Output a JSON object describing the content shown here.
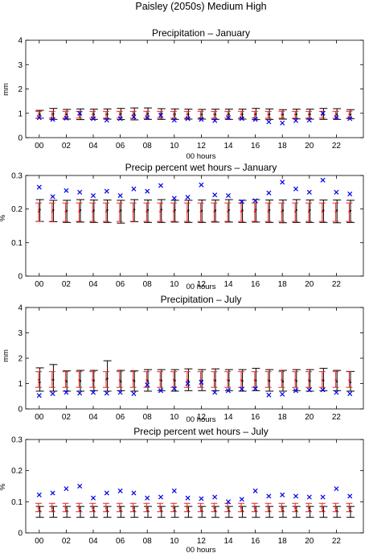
{
  "figure": {
    "title": "Paisley (2050s) Medium High"
  },
  "colors": {
    "observed": "#0000ee",
    "red_bar": "#ee2222",
    "black_bar": "#000000",
    "axis": "#000000"
  },
  "chart_data": [
    {
      "type": "errorbar",
      "title": "Precipitation – January",
      "xlabel": "00 hours",
      "ylabel": "mm",
      "xlim": [
        -1,
        24
      ],
      "ylim": [
        0,
        4
      ],
      "xticks": [
        0,
        2,
        4,
        6,
        8,
        10,
        12,
        14,
        16,
        18,
        20,
        22
      ],
      "xticklabels": [
        "00",
        "02",
        "04",
        "06",
        "08",
        "10",
        "12",
        "14",
        "16",
        "18",
        "20",
        "22"
      ],
      "yticks": [
        0,
        1,
        2,
        3,
        4
      ],
      "yticklabels": [
        "0",
        "1",
        "2",
        "3",
        "4"
      ],
      "x": [
        0,
        1,
        2,
        3,
        4,
        5,
        6,
        7,
        8,
        9,
        10,
        11,
        12,
        13,
        14,
        15,
        16,
        17,
        18,
        19,
        20,
        21,
        22,
        23
      ],
      "red_bars": {
        "mid": [
          0.95,
          0.95,
          0.95,
          0.95,
          0.95,
          0.95,
          0.95,
          0.95,
          0.95,
          0.95,
          0.95,
          0.95,
          0.95,
          0.95,
          0.95,
          0.95,
          0.95,
          0.95,
          0.95,
          0.95,
          0.95,
          0.95,
          0.95,
          0.95
        ],
        "low": [
          0.8,
          0.8,
          0.8,
          0.8,
          0.8,
          0.8,
          0.8,
          0.8,
          0.8,
          0.8,
          0.8,
          0.8,
          0.8,
          0.8,
          0.8,
          0.8,
          0.8,
          0.8,
          0.8,
          0.8,
          0.8,
          0.8,
          0.8,
          0.8
        ],
        "high": [
          1.08,
          1.08,
          1.08,
          1.08,
          1.08,
          1.08,
          1.08,
          1.08,
          1.08,
          1.08,
          1.08,
          1.08,
          1.08,
          1.08,
          1.08,
          1.08,
          1.08,
          1.08,
          1.08,
          1.08,
          1.08,
          1.08,
          1.08,
          1.08
        ]
      },
      "black_bars": {
        "mid": [
          0.95,
          0.97,
          0.96,
          0.97,
          0.96,
          0.96,
          0.97,
          0.98,
          0.98,
          0.97,
          0.96,
          0.96,
          0.95,
          0.96,
          0.96,
          0.96,
          0.97,
          0.96,
          0.95,
          0.96,
          0.96,
          0.97,
          0.96,
          0.95
        ],
        "low": [
          0.8,
          0.75,
          0.76,
          0.74,
          0.75,
          0.76,
          0.74,
          0.73,
          0.75,
          0.75,
          0.75,
          0.76,
          0.76,
          0.75,
          0.75,
          0.76,
          0.74,
          0.75,
          0.76,
          0.77,
          0.76,
          0.75,
          0.75,
          0.78
        ],
        "high": [
          1.12,
          1.2,
          1.16,
          1.18,
          1.17,
          1.18,
          1.2,
          1.22,
          1.22,
          1.19,
          1.18,
          1.17,
          1.16,
          1.17,
          1.17,
          1.17,
          1.2,
          1.18,
          1.15,
          1.17,
          1.17,
          1.2,
          1.19,
          1.15
        ]
      },
      "observed": [
        0.82,
        0.75,
        0.8,
        1.0,
        0.78,
        0.72,
        0.78,
        0.85,
        0.82,
        0.92,
        0.72,
        0.78,
        0.75,
        0.7,
        0.82,
        0.78,
        0.75,
        0.65,
        0.6,
        0.7,
        0.72,
        1.0,
        0.82,
        0.78
      ]
    },
    {
      "type": "errorbar",
      "title": "Precip percent wet hours – January",
      "xlabel": "00 hours",
      "ylabel": "%",
      "xlim": [
        -1,
        24
      ],
      "ylim": [
        0,
        0.3
      ],
      "xticks": [
        0,
        2,
        4,
        6,
        8,
        10,
        12,
        14,
        16,
        18,
        20,
        22
      ],
      "xticklabels": [
        "00",
        "02",
        "04",
        "06",
        "08",
        "10",
        "12",
        "14",
        "16",
        "18",
        "20",
        "22"
      ],
      "yticks": [
        0,
        0.1,
        0.2,
        0.3
      ],
      "yticklabels": [
        "0",
        "0.1",
        "0.2",
        "0.3"
      ],
      "x": [
        0,
        1,
        2,
        3,
        4,
        5,
        6,
        7,
        8,
        9,
        10,
        11,
        12,
        13,
        14,
        15,
        16,
        17,
        18,
        19,
        20,
        21,
        22,
        23
      ],
      "red_bars": {
        "mid": [
          0.192,
          0.192,
          0.192,
          0.192,
          0.192,
          0.192,
          0.192,
          0.192,
          0.192,
          0.192,
          0.192,
          0.192,
          0.192,
          0.192,
          0.192,
          0.192,
          0.192,
          0.192,
          0.192,
          0.192,
          0.192,
          0.192,
          0.192,
          0.192
        ],
        "low": [
          0.163,
          0.163,
          0.163,
          0.163,
          0.163,
          0.163,
          0.163,
          0.163,
          0.163,
          0.163,
          0.163,
          0.163,
          0.163,
          0.163,
          0.163,
          0.163,
          0.163,
          0.163,
          0.163,
          0.163,
          0.163,
          0.163,
          0.163,
          0.163
        ],
        "high": [
          0.218,
          0.218,
          0.218,
          0.218,
          0.218,
          0.218,
          0.218,
          0.218,
          0.218,
          0.218,
          0.218,
          0.218,
          0.218,
          0.218,
          0.218,
          0.218,
          0.218,
          0.218,
          0.218,
          0.218,
          0.218,
          0.218,
          0.218,
          0.218
        ]
      },
      "black_bars": {
        "mid": [
          0.198,
          0.197,
          0.195,
          0.197,
          0.196,
          0.197,
          0.196,
          0.198,
          0.197,
          0.198,
          0.197,
          0.196,
          0.195,
          0.196,
          0.197,
          0.196,
          0.198,
          0.197,
          0.196,
          0.197,
          0.197,
          0.196,
          0.196,
          0.195
        ],
        "low": [
          0.163,
          0.162,
          0.16,
          0.161,
          0.16,
          0.16,
          0.158,
          0.162,
          0.16,
          0.16,
          0.161,
          0.16,
          0.16,
          0.161,
          0.161,
          0.16,
          0.161,
          0.16,
          0.159,
          0.16,
          0.16,
          0.16,
          0.159,
          0.16
        ],
        "high": [
          0.228,
          0.226,
          0.226,
          0.228,
          0.227,
          0.227,
          0.226,
          0.228,
          0.227,
          0.228,
          0.226,
          0.226,
          0.227,
          0.227,
          0.228,
          0.226,
          0.228,
          0.227,
          0.227,
          0.228,
          0.227,
          0.227,
          0.227,
          0.226
        ]
      },
      "observed": [
        0.265,
        0.237,
        0.255,
        0.25,
        0.24,
        0.253,
        0.24,
        0.26,
        0.253,
        0.27,
        0.232,
        0.235,
        0.272,
        0.242,
        0.24,
        0.222,
        0.225,
        0.248,
        0.28,
        0.26,
        0.25,
        0.286,
        0.25,
        0.245
      ]
    },
    {
      "type": "errorbar",
      "title": "Precipitation – July",
      "xlabel": "00 hours",
      "ylabel": "mm",
      "xlim": [
        -1,
        24
      ],
      "ylim": [
        0,
        4
      ],
      "xticks": [
        0,
        2,
        4,
        6,
        8,
        10,
        12,
        14,
        16,
        18,
        20,
        22
      ],
      "xticklabels": [
        "00",
        "02",
        "04",
        "06",
        "08",
        "10",
        "12",
        "14",
        "16",
        "18",
        "20",
        "22"
      ],
      "yticks": [
        0,
        1,
        2,
        3,
        4
      ],
      "yticklabels": [
        "0",
        "1",
        "2",
        "3",
        "4"
      ],
      "x": [
        0,
        1,
        2,
        3,
        4,
        5,
        6,
        7,
        8,
        9,
        10,
        11,
        12,
        13,
        14,
        15,
        16,
        17,
        18,
        19,
        20,
        21,
        22,
        23
      ],
      "red_bars": {
        "mid": [
          1.15,
          1.15,
          1.12,
          1.14,
          1.13,
          1.15,
          1.14,
          1.14,
          1.14,
          1.14,
          1.15,
          1.14,
          1.14,
          1.14,
          1.14,
          1.14,
          1.14,
          1.14,
          1.14,
          1.14,
          1.14,
          1.14,
          1.14,
          1.13
        ],
        "low": [
          0.85,
          0.85,
          0.85,
          0.85,
          0.85,
          0.85,
          0.85,
          0.85,
          0.85,
          0.85,
          0.85,
          0.85,
          0.85,
          0.85,
          0.85,
          0.85,
          0.85,
          0.85,
          0.85,
          0.85,
          0.85,
          0.85,
          0.85,
          0.85
        ],
        "high": [
          1.47,
          1.47,
          1.47,
          1.47,
          1.47,
          1.47,
          1.47,
          1.47,
          1.47,
          1.47,
          1.47,
          1.47,
          1.47,
          1.47,
          1.47,
          1.47,
          1.47,
          1.47,
          1.47,
          1.47,
          1.47,
          1.47,
          1.47,
          1.47
        ]
      },
      "black_bars": {
        "mid": [
          1.05,
          1.15,
          1.08,
          1.1,
          1.12,
          1.2,
          1.08,
          1.1,
          1.1,
          1.12,
          1.12,
          1.1,
          1.1,
          1.12,
          1.12,
          1.1,
          1.12,
          1.1,
          1.08,
          1.1,
          1.1,
          1.12,
          1.08,
          1.05
        ],
        "low": [
          0.7,
          0.7,
          0.7,
          0.7,
          0.72,
          0.7,
          0.72,
          0.7,
          0.7,
          0.72,
          0.7,
          0.72,
          0.72,
          0.72,
          0.72,
          0.7,
          0.72,
          0.7,
          0.7,
          0.72,
          0.7,
          0.72,
          0.72,
          0.7
        ],
        "high": [
          1.62,
          1.75,
          1.5,
          1.52,
          1.52,
          1.9,
          1.52,
          1.5,
          1.55,
          1.55,
          1.55,
          1.58,
          1.55,
          1.58,
          1.55,
          1.55,
          1.6,
          1.55,
          1.52,
          1.55,
          1.55,
          1.6,
          1.52,
          1.48
        ]
      },
      "observed": [
        0.53,
        0.6,
        0.65,
        0.62,
        0.65,
        0.62,
        0.65,
        0.6,
        0.95,
        0.72,
        0.8,
        1.0,
        1.05,
        0.65,
        0.72,
        0.78,
        0.8,
        0.55,
        0.58,
        0.72,
        0.75,
        0.75,
        0.65,
        0.6
      ]
    },
    {
      "type": "errorbar",
      "title": "Precip percent wet hours – July",
      "xlabel": "00 hours",
      "ylabel": "%",
      "xlim": [
        -1,
        24
      ],
      "ylim": [
        0,
        0.3
      ],
      "xticks": [
        0,
        2,
        4,
        6,
        8,
        10,
        12,
        14,
        16,
        18,
        20,
        22
      ],
      "xticklabels": [
        "00",
        "02",
        "04",
        "06",
        "08",
        "10",
        "12",
        "14",
        "16",
        "18",
        "20",
        "22"
      ],
      "yticks": [
        0,
        0.1,
        0.2,
        0.3
      ],
      "yticklabels": [
        "0",
        "0.1",
        "0.2",
        "0.3"
      ],
      "x": [
        0,
        1,
        2,
        3,
        4,
        5,
        6,
        7,
        8,
        9,
        10,
        11,
        12,
        13,
        14,
        15,
        16,
        17,
        18,
        19,
        20,
        21,
        22,
        23
      ],
      "red_bars": {
        "mid": [
          0.08,
          0.08,
          0.08,
          0.08,
          0.08,
          0.08,
          0.08,
          0.08,
          0.08,
          0.08,
          0.08,
          0.08,
          0.08,
          0.08,
          0.08,
          0.08,
          0.08,
          0.08,
          0.08,
          0.08,
          0.08,
          0.08,
          0.08,
          0.08
        ],
        "low": [
          0.068,
          0.068,
          0.068,
          0.068,
          0.068,
          0.068,
          0.068,
          0.068,
          0.068,
          0.068,
          0.068,
          0.068,
          0.068,
          0.068,
          0.068,
          0.068,
          0.068,
          0.068,
          0.068,
          0.068,
          0.068,
          0.068,
          0.068,
          0.068
        ],
        "high": [
          0.095,
          0.095,
          0.095,
          0.095,
          0.095,
          0.095,
          0.095,
          0.095,
          0.095,
          0.095,
          0.095,
          0.095,
          0.095,
          0.095,
          0.095,
          0.095,
          0.095,
          0.095,
          0.095,
          0.095,
          0.095,
          0.095,
          0.095,
          0.095
        ]
      },
      "black_bars": {
        "mid": [
          0.07,
          0.07,
          0.07,
          0.07,
          0.07,
          0.07,
          0.07,
          0.07,
          0.07,
          0.07,
          0.07,
          0.07,
          0.07,
          0.07,
          0.07,
          0.07,
          0.07,
          0.07,
          0.07,
          0.07,
          0.07,
          0.07,
          0.07,
          0.07
        ],
        "low": [
          0.05,
          0.05,
          0.05,
          0.05,
          0.05,
          0.05,
          0.05,
          0.05,
          0.05,
          0.05,
          0.05,
          0.05,
          0.05,
          0.05,
          0.05,
          0.05,
          0.05,
          0.05,
          0.05,
          0.05,
          0.05,
          0.05,
          0.05,
          0.05
        ],
        "high": [
          0.085,
          0.085,
          0.085,
          0.085,
          0.085,
          0.085,
          0.085,
          0.085,
          0.085,
          0.085,
          0.085,
          0.085,
          0.085,
          0.085,
          0.085,
          0.085,
          0.085,
          0.085,
          0.085,
          0.085,
          0.085,
          0.085,
          0.085,
          0.085
        ]
      },
      "observed": [
        0.122,
        0.128,
        0.142,
        0.15,
        0.112,
        0.128,
        0.135,
        0.128,
        0.112,
        0.115,
        0.135,
        0.112,
        0.11,
        0.115,
        0.1,
        0.108,
        0.135,
        0.118,
        0.122,
        0.118,
        0.115,
        0.115,
        0.142,
        0.118
      ]
    }
  ]
}
